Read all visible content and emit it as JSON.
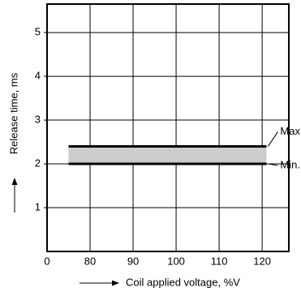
{
  "chart_data": {
    "type": "line",
    "xlabel": "Coil applied  voltage, %V",
    "ylabel": "Release time, ms",
    "x": [
      75,
      121
    ],
    "series": [
      {
        "name": "Max.",
        "color": "#000000",
        "values": [
          2.4,
          2.4
        ]
      },
      {
        "name": "Min.",
        "color": "#000000",
        "values": [
          2,
          2
        ]
      }
    ],
    "fill_between": true,
    "fill_color": "#cccccc",
    "xlim": [
      0,
      126.2
    ],
    "x_axis_break": [
      0,
      70
    ],
    "xticks": [
      0,
      80,
      90,
      100,
      110,
      120
    ],
    "ylim": [
      0,
      5.65
    ],
    "yticks": [
      1,
      2,
      3,
      4,
      5
    ],
    "grid": true
  }
}
